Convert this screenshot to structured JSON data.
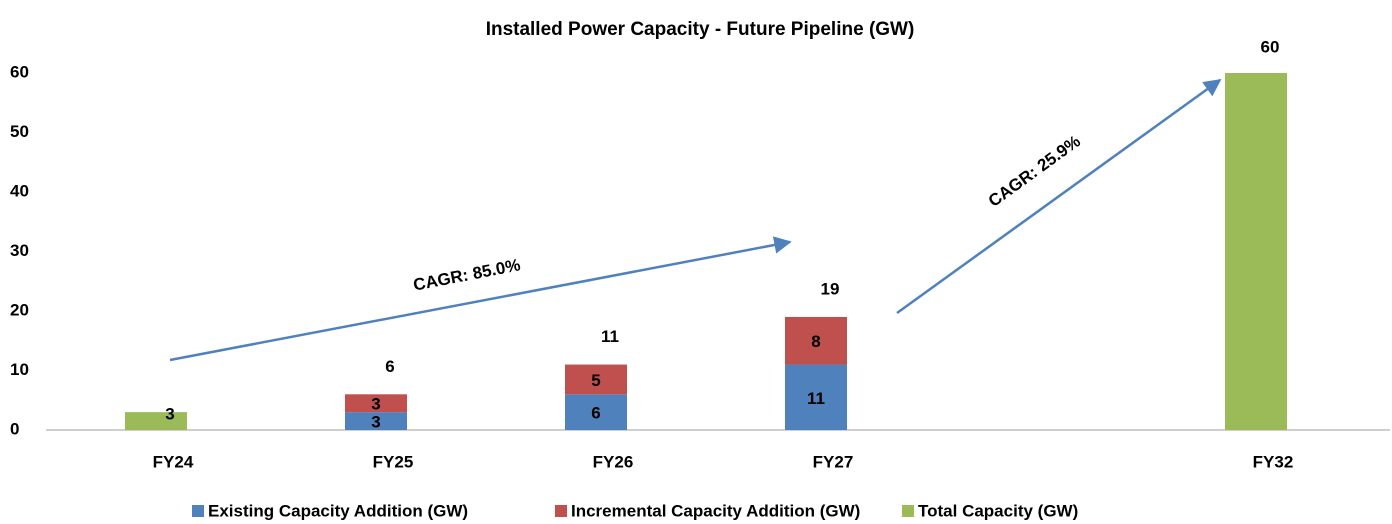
{
  "chart_data": {
    "type": "stacked_bar",
    "title": "Installed Power Capacity - Future Pipeline (GW)",
    "categories": [
      "FY24",
      "FY25",
      "FY26",
      "FY27",
      null,
      "FY32"
    ],
    "series": [
      {
        "name": "Existing Capacity Addition (GW)",
        "color": "#4f81bd",
        "values": [
          null,
          3,
          6,
          11,
          null,
          null
        ]
      },
      {
        "name": "Incremental Capacity Addition (GW)",
        "color": "#c0504d",
        "values": [
          null,
          3,
          5,
          8,
          null,
          null
        ]
      },
      {
        "name": "Total Capacity (GW)",
        "color": "#9bbb59",
        "values": [
          3,
          null,
          null,
          null,
          null,
          60
        ]
      }
    ],
    "stack_totals": [
      null,
      6,
      11,
      19,
      null,
      null
    ],
    "annotations": [
      "CAGR: 85.0%",
      "CAGR: 25.9%"
    ],
    "ylim": [
      0,
      60
    ],
    "yticks": [
      0,
      10,
      20,
      30,
      40,
      50,
      60
    ],
    "grid": false,
    "legend": "bottom"
  }
}
